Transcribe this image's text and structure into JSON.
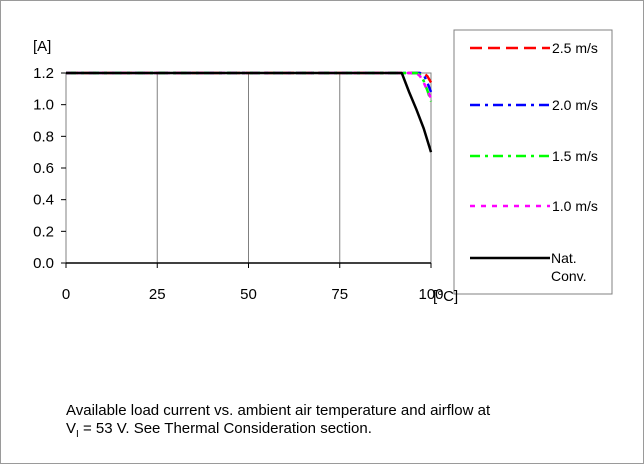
{
  "chart_data": {
    "type": "line",
    "ylabel": "[A]",
    "xlabel": "[°C]",
    "xlim": [
      0,
      100
    ],
    "ylim": [
      0,
      1.2
    ],
    "x_ticks": [
      "0",
      "25",
      "50",
      "75",
      "100"
    ],
    "y_ticks": [
      "0.0",
      "0.2",
      "0.4",
      "0.6",
      "0.8",
      "1.0",
      "1.2"
    ],
    "grid": true,
    "legend_position": "right",
    "series": [
      {
        "name": "2.5 m/s",
        "color": "#ff0000",
        "style": "dashed",
        "x": [
          0,
          97,
          98,
          99,
          100
        ],
        "y": [
          1.2,
          1.2,
          1.2,
          1.18,
          1.14
        ]
      },
      {
        "name": "2.0 m/s",
        "color": "#0000ff",
        "style": "dash-dot",
        "x": [
          0,
          97,
          98,
          99,
          100
        ],
        "y": [
          1.2,
          1.2,
          1.19,
          1.14,
          1.08
        ]
      },
      {
        "name": "1.5 m/s",
        "color": "#00ff00",
        "style": "dash-dot",
        "x": [
          0,
          96,
          97,
          98,
          99,
          100
        ],
        "y": [
          1.2,
          1.2,
          1.19,
          1.15,
          1.09,
          1.02
        ]
      },
      {
        "name": "1.0 m/s",
        "color": "#ff00ff",
        "style": "dotted",
        "x": [
          0,
          96,
          97,
          98,
          99,
          100
        ],
        "y": [
          1.2,
          1.2,
          1.18,
          1.14,
          1.09,
          1.04
        ]
      },
      {
        "name": "Nat. Conv.",
        "color": "#000000",
        "style": "solid",
        "x": [
          0,
          92,
          94,
          96,
          98,
          100
        ],
        "y": [
          1.2,
          1.2,
          1.08,
          0.97,
          0.85,
          0.7
        ]
      }
    ]
  },
  "caption": {
    "line1": "Available load current vs. ambient air temperature and airflow at",
    "line2_prefix": "V",
    "line2_sub": "I",
    "line2_rest": " = 53 V. See Thermal Consideration section."
  }
}
